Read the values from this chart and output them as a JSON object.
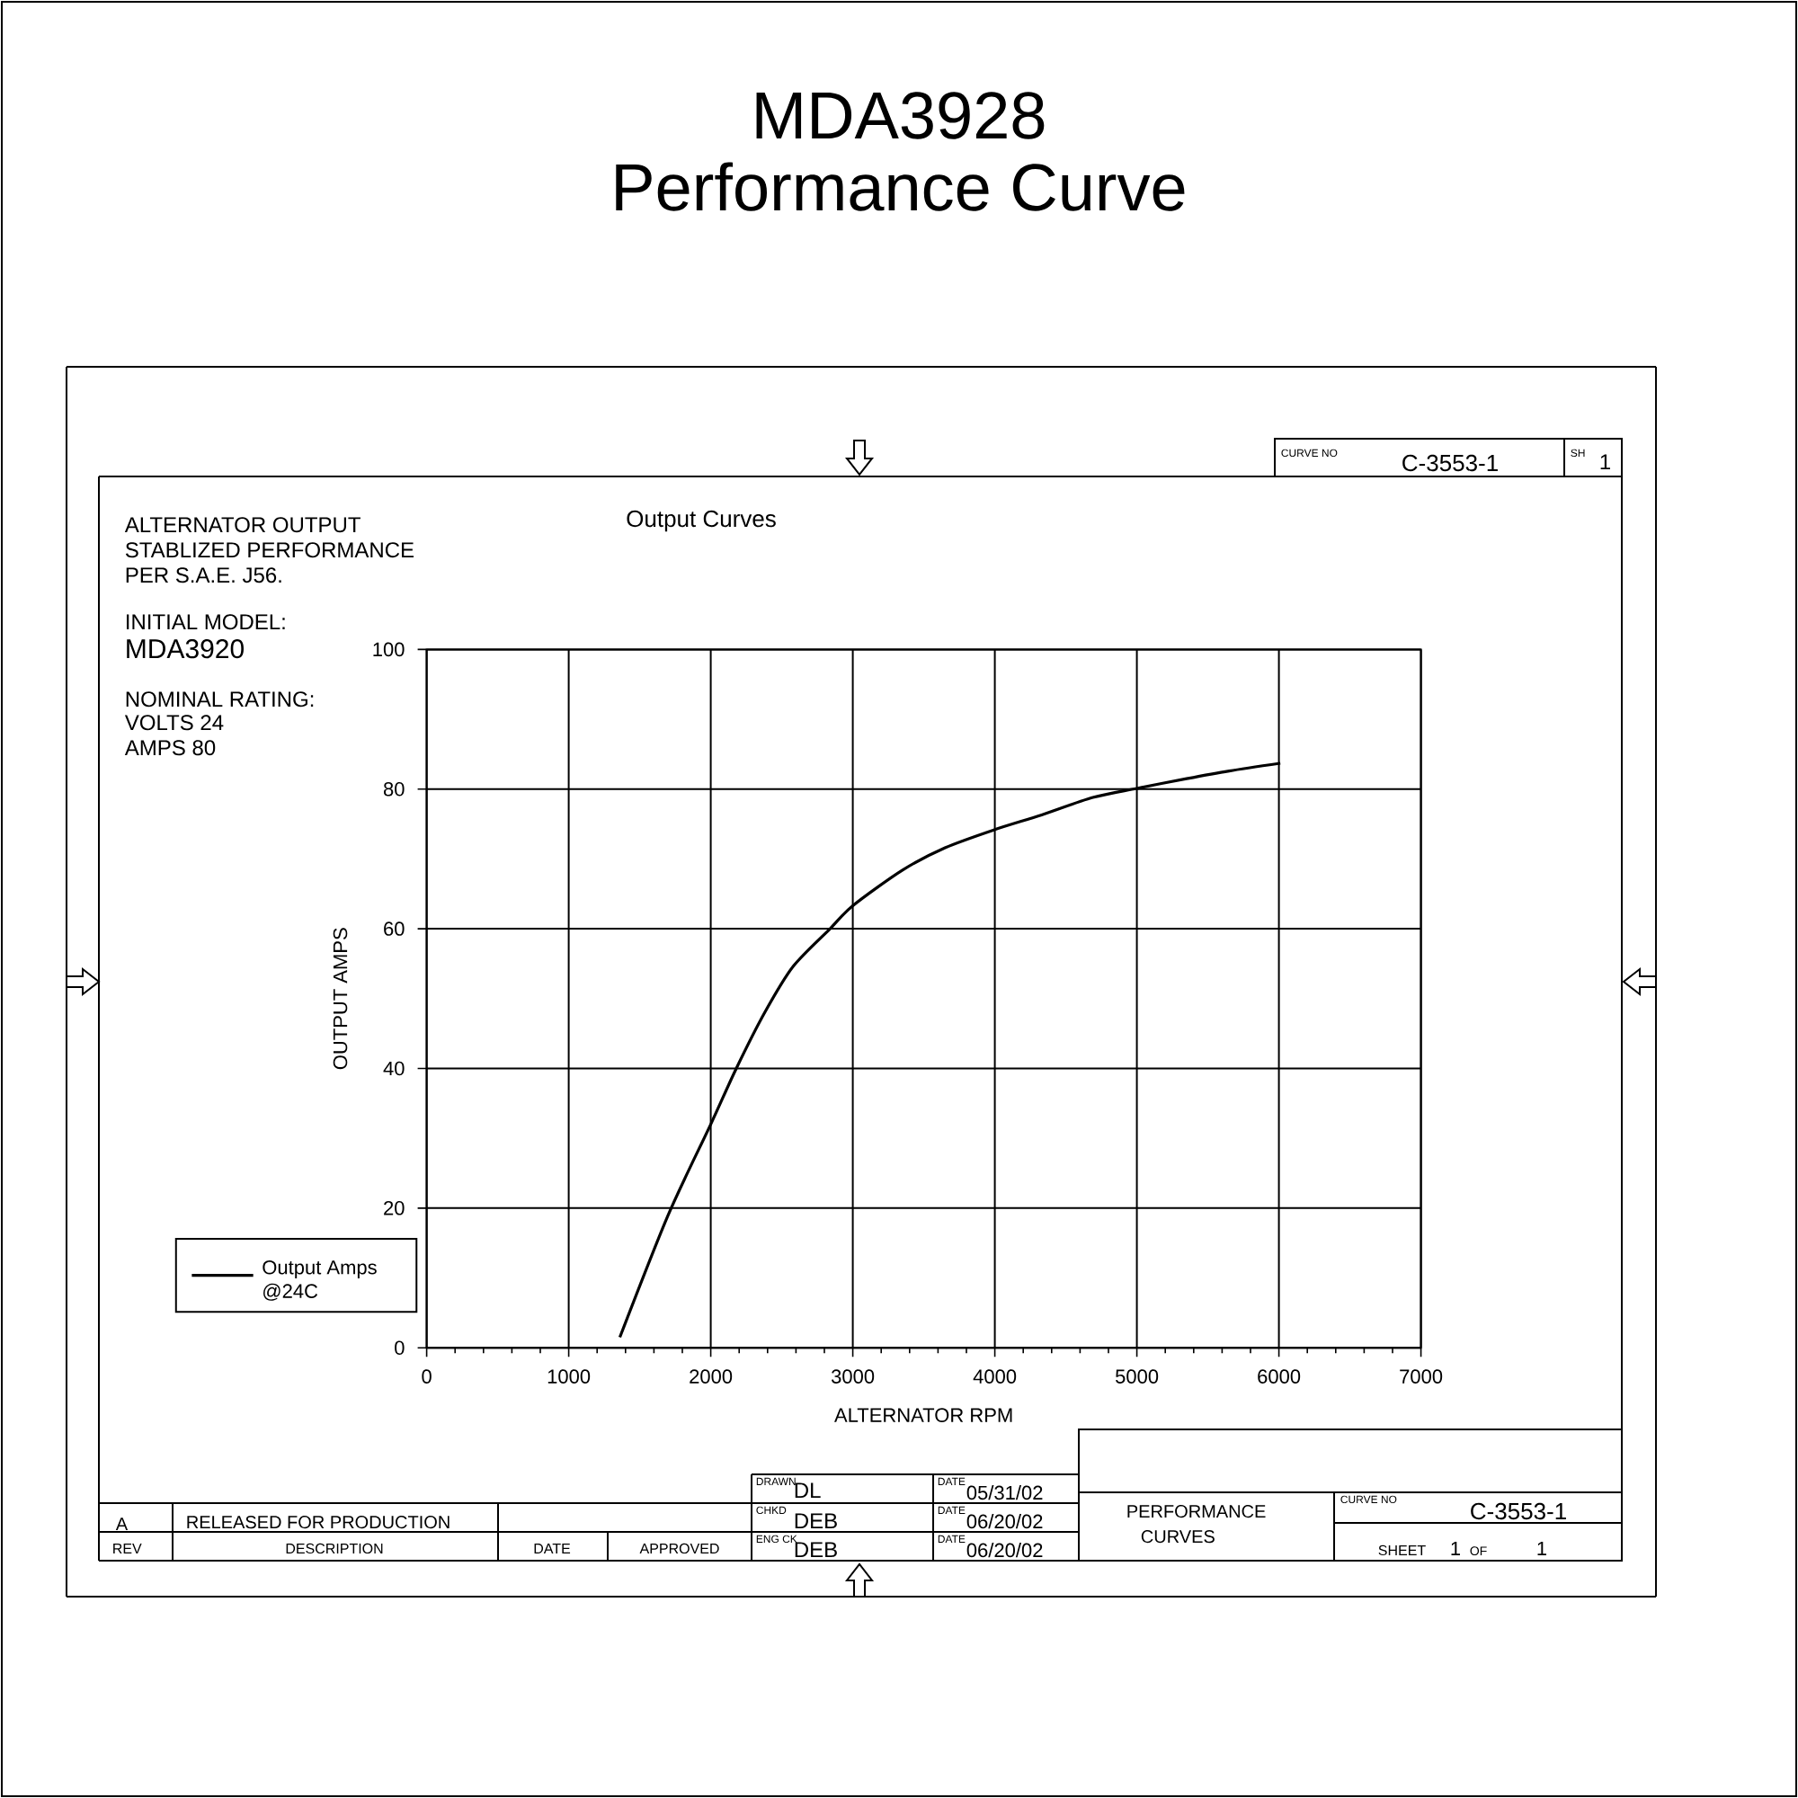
{
  "chart_data": {
    "type": "line",
    "title": "MDA3928",
    "subtitle": "Performance Curve",
    "xlabel": "ALTERNATOR RPM",
    "ylabel": "OUTPUT AMPS",
    "x": [
      1360,
      1700,
      2000,
      2180,
      2380,
      2580,
      2840,
      3000,
      3350,
      3650,
      4000,
      4330,
      4690,
      5000,
      5350,
      5650,
      6010
    ],
    "series": [
      {
        "name": "Output Amps @24C",
        "color": "#000000",
        "values": [
          1.5,
          19,
          32,
          40,
          48,
          54.6,
          60,
          63.3,
          68.4,
          71.6,
          74.2,
          76.3,
          78.8,
          80.1,
          81.5,
          82.6,
          83.7
        ]
      }
    ],
    "xlim": [
      0,
      7000
    ],
    "xticks": [
      0,
      {
        "value": 200,
        "label": null
      },
      {
        "value": 400,
        "label": null
      },
      {
        "value": 600,
        "label": null
      },
      {
        "value": 800,
        "label": null
      },
      1000,
      {
        "value": 1200,
        "label": null
      },
      {
        "value": 1400,
        "label": null
      },
      {
        "value": 1600,
        "label": null
      },
      {
        "value": 1800,
        "label": null
      },
      2000,
      {
        "value": 2200,
        "label": null
      },
      {
        "value": 2400,
        "label": null
      },
      {
        "value": 2600,
        "label": null
      },
      {
        "value": 2800,
        "label": null
      },
      3000,
      {
        "value": 3200,
        "label": null
      },
      {
        "value": 3400,
        "label": null
      },
      {
        "value": 3600,
        "label": null
      },
      {
        "value": 3800,
        "label": null
      },
      4000,
      {
        "value": 4200,
        "label": null
      },
      {
        "value": 4400,
        "label": null
      },
      {
        "value": 4600,
        "label": null
      },
      {
        "value": 4800,
        "label": null
      },
      5000,
      {
        "value": 5200,
        "label": null
      },
      {
        "value": 5400,
        "label": null
      },
      {
        "value": 5600,
        "label": null
      },
      {
        "value": 5800,
        "label": null
      },
      6000,
      {
        "value": 6200,
        "label": null
      },
      {
        "value": 6400,
        "label": null
      },
      {
        "value": 6600,
        "label": null
      },
      {
        "value": 6800,
        "label": null
      },
      7000
    ],
    "ylim": [
      0,
      100
    ],
    "yticks": [
      0,
      20,
      40,
      60,
      80,
      100
    ],
    "grid": true,
    "legend": "left",
    "annotations": [
      "Output Curves",
      "ALTERNATOR OUTPUT",
      "STABLIZED PERFORMANCE",
      "PER S.A.E. J56.",
      "INITIAL MODEL:",
      "MDA3920",
      "NOMINAL RATING:",
      "VOLTS 24",
      "AMPS 80",
      "CURVE NO",
      "C-3553-1",
      "SH",
      "1",
      "A",
      "RELEASED FOR PRODUCTION",
      "REV",
      "DESCRIPTION",
      "DATE",
      "APPROVED",
      "DRAWN",
      "DL",
      "DATE",
      "05/31/02",
      "CHKD",
      "DEB",
      "DATE",
      "06/20/02",
      "ENG CK",
      "DEB",
      "DATE",
      "06/20/02",
      "PERFORMANCE",
      "CURVES",
      "CURVE NO",
      "C-3553-1",
      "SHEET",
      "1",
      "OF",
      "1"
    ]
  }
}
